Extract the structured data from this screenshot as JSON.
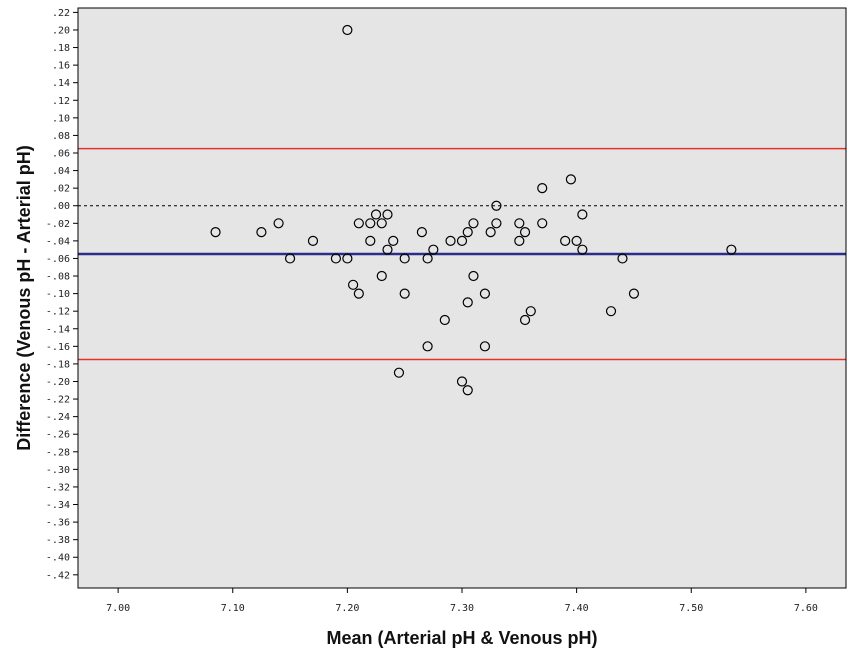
{
  "chart_data": {
    "type": "scatter",
    "title": "",
    "xlabel": "Mean (Arterial pH & Venous pH)",
    "ylabel": "Difference (Venous pH - Arterial pH)",
    "xlim": [
      6.965,
      7.635
    ],
    "ylim": [
      -0.435,
      0.225
    ],
    "x_ticks": [
      7.0,
      7.1,
      7.2,
      7.3,
      7.4,
      7.5,
      7.6
    ],
    "x_tick_labels": [
      "7.00",
      "7.10",
      "7.20",
      "7.30",
      "7.40",
      "7.50",
      "7.60"
    ],
    "y_ticks": [
      0.22,
      0.2,
      0.18,
      0.16,
      0.14,
      0.12,
      0.1,
      0.08,
      0.06,
      0.04,
      0.02,
      0.0,
      -0.02,
      -0.04,
      -0.06,
      -0.08,
      -0.1,
      -0.12,
      -0.14,
      -0.16,
      -0.18,
      -0.2,
      -0.22,
      -0.24,
      -0.26,
      -0.28,
      -0.3,
      -0.32,
      -0.34,
      -0.36,
      -0.38,
      -0.4,
      -0.42
    ],
    "y_tick_labels": [
      ".22",
      ".20",
      ".18",
      ".16",
      ".14",
      ".12",
      ".10",
      ".08",
      ".06",
      ".04",
      ".02",
      ".00",
      "-.02",
      "-.04",
      "-.06",
      "-.08",
      "-.10",
      "-.12",
      "-.14",
      "-.16",
      "-.18",
      "-.20",
      "-.22",
      "-.24",
      "-.26",
      "-.28",
      "-.30",
      "-.32",
      "-.34",
      "-.36",
      "-.38",
      "-.40",
      "-.42"
    ],
    "grid": false,
    "plot_background": "#e5e5e5",
    "reference_lines": [
      {
        "kind": "upper-limit",
        "y": 0.065,
        "color": "#e8302a",
        "style": "solid"
      },
      {
        "kind": "zero",
        "y": 0.0,
        "color": "#000000",
        "style": "dashed"
      },
      {
        "kind": "mean-difference",
        "y": -0.055,
        "color": "#2b2d8a",
        "style": "solid"
      },
      {
        "kind": "lower-limit",
        "y": -0.175,
        "color": "#e8302a",
        "style": "solid"
      }
    ],
    "points": [
      {
        "x": 7.085,
        "y": -0.03
      },
      {
        "x": 7.125,
        "y": -0.03
      },
      {
        "x": 7.14,
        "y": -0.02
      },
      {
        "x": 7.15,
        "y": -0.06
      },
      {
        "x": 7.17,
        "y": -0.04
      },
      {
        "x": 7.19,
        "y": -0.06
      },
      {
        "x": 7.2,
        "y": 0.2
      },
      {
        "x": 7.2,
        "y": -0.06
      },
      {
        "x": 7.205,
        "y": -0.09
      },
      {
        "x": 7.21,
        "y": -0.02
      },
      {
        "x": 7.21,
        "y": -0.1
      },
      {
        "x": 7.22,
        "y": -0.02
      },
      {
        "x": 7.22,
        "y": -0.04
      },
      {
        "x": 7.225,
        "y": -0.01
      },
      {
        "x": 7.23,
        "y": -0.02
      },
      {
        "x": 7.23,
        "y": -0.08
      },
      {
        "x": 7.235,
        "y": -0.01
      },
      {
        "x": 7.235,
        "y": -0.05
      },
      {
        "x": 7.24,
        "y": -0.04
      },
      {
        "x": 7.245,
        "y": -0.19
      },
      {
        "x": 7.25,
        "y": -0.06
      },
      {
        "x": 7.25,
        "y": -0.1
      },
      {
        "x": 7.265,
        "y": -0.03
      },
      {
        "x": 7.27,
        "y": -0.06
      },
      {
        "x": 7.27,
        "y": -0.16
      },
      {
        "x": 7.275,
        "y": -0.05
      },
      {
        "x": 7.285,
        "y": -0.13
      },
      {
        "x": 7.29,
        "y": -0.04
      },
      {
        "x": 7.3,
        "y": -0.04
      },
      {
        "x": 7.3,
        "y": -0.2
      },
      {
        "x": 7.305,
        "y": -0.03
      },
      {
        "x": 7.305,
        "y": -0.11
      },
      {
        "x": 7.305,
        "y": -0.21
      },
      {
        "x": 7.31,
        "y": -0.02
      },
      {
        "x": 7.31,
        "y": -0.08
      },
      {
        "x": 7.32,
        "y": -0.1
      },
      {
        "x": 7.32,
        "y": -0.16
      },
      {
        "x": 7.325,
        "y": -0.03
      },
      {
        "x": 7.33,
        "y": 0.0
      },
      {
        "x": 7.33,
        "y": -0.02
      },
      {
        "x": 7.35,
        "y": -0.02
      },
      {
        "x": 7.35,
        "y": -0.04
      },
      {
        "x": 7.355,
        "y": -0.03
      },
      {
        "x": 7.355,
        "y": -0.13
      },
      {
        "x": 7.36,
        "y": -0.12
      },
      {
        "x": 7.37,
        "y": 0.02
      },
      {
        "x": 7.37,
        "y": -0.02
      },
      {
        "x": 7.39,
        "y": -0.04
      },
      {
        "x": 7.395,
        "y": 0.03
      },
      {
        "x": 7.4,
        "y": -0.04
      },
      {
        "x": 7.405,
        "y": -0.01
      },
      {
        "x": 7.405,
        "y": -0.05
      },
      {
        "x": 7.43,
        "y": -0.12
      },
      {
        "x": 7.44,
        "y": -0.06
      },
      {
        "x": 7.45,
        "y": -0.1
      },
      {
        "x": 7.535,
        "y": -0.05
      }
    ]
  }
}
